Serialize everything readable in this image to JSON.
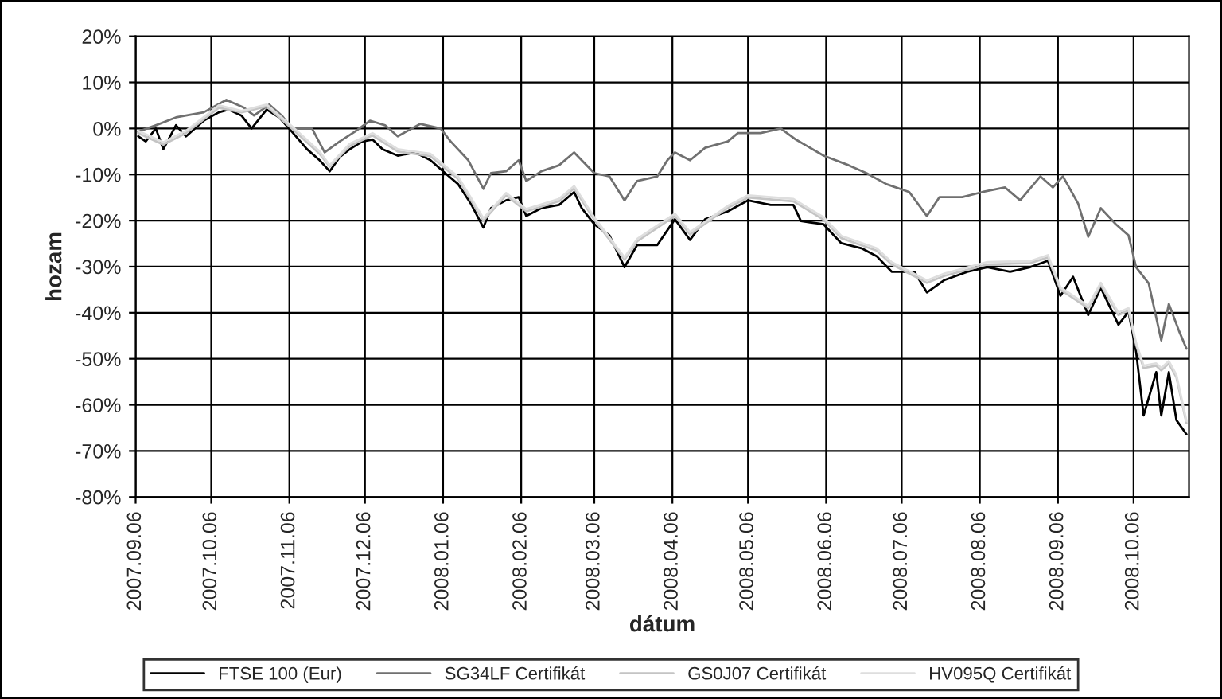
{
  "chart_data": {
    "type": "line",
    "xlabel": "dátum",
    "ylabel": "hozam",
    "xlim": [
      "2007-09-06",
      "2008-10-28"
    ],
    "xticks": [
      {
        "value": "2007-09-06",
        "label": "2007.09.06"
      },
      {
        "value": "2007-10-06",
        "label": "2007.10.06"
      },
      {
        "value": "2007-11-06",
        "label": "2007.11.06"
      },
      {
        "value": "2007-12-06",
        "label": "2007.12.06"
      },
      {
        "value": "2008-01-06",
        "label": "2008.01.06"
      },
      {
        "value": "2008-02-06",
        "label": "2008.02.06"
      },
      {
        "value": "2008-03-06",
        "label": "2008.03.06"
      },
      {
        "value": "2008-04-06",
        "label": "2008.04.06"
      },
      {
        "value": "2008-05-06",
        "label": "2008.05.06"
      },
      {
        "value": "2008-06-06",
        "label": "2008.06.06"
      },
      {
        "value": "2008-07-06",
        "label": "2008.07.06"
      },
      {
        "value": "2008-08-06",
        "label": "2008.08.06"
      },
      {
        "value": "2008-09-06",
        "label": "2008.09.06"
      },
      {
        "value": "2008-10-06",
        "label": "2008.10.06"
      }
    ],
    "ylim": [
      -80,
      20
    ],
    "yticks": [
      {
        "value": -80,
        "label": "-80%"
      },
      {
        "value": -70,
        "label": "-70%"
      },
      {
        "value": -60,
        "label": "-60%"
      },
      {
        "value": -50,
        "label": "-50%"
      },
      {
        "value": -40,
        "label": "-40%"
      },
      {
        "value": -30,
        "label": "-30%"
      },
      {
        "value": -20,
        "label": "-20%"
      },
      {
        "value": -10,
        "label": "-10%"
      },
      {
        "value": 0,
        "label": "0%"
      },
      {
        "value": 10,
        "label": "10%"
      },
      {
        "value": 20,
        "label": "20%"
      }
    ],
    "grid": true,
    "legend": "bottom",
    "marker": "none",
    "line_style": "solid",
    "series": [
      {
        "name": "FTSE 100 (Eur)",
        "color": "#000000",
        "x": [
          "2007-09-07",
          "2007-09-10",
          "2007-09-14",
          "2007-09-17",
          "2007-09-22",
          "2007-09-26",
          "2007-10-03",
          "2007-10-09",
          "2007-10-13",
          "2007-10-18",
          "2007-10-22",
          "2007-10-28",
          "2007-11-02",
          "2007-11-07",
          "2007-11-13",
          "2007-11-18",
          "2007-11-22",
          "2007-11-26",
          "2007-11-30",
          "2007-12-05",
          "2007-12-09",
          "2007-12-13",
          "2007-12-19",
          "2007-12-26",
          "2008-01-01",
          "2008-01-06",
          "2008-01-12",
          "2008-01-17",
          "2008-01-22",
          "2008-01-25",
          "2008-01-31",
          "2008-02-05",
          "2008-02-08",
          "2008-02-14",
          "2008-02-21",
          "2008-02-27",
          "2008-03-01",
          "2008-03-06",
          "2008-03-12",
          "2008-03-18",
          "2008-03-23",
          "2008-03-31",
          "2008-04-07",
          "2008-04-13",
          "2008-04-19",
          "2008-04-28",
          "2008-05-06",
          "2008-05-15",
          "2008-05-24",
          "2008-05-27",
          "2008-06-05",
          "2008-06-12",
          "2008-06-20",
          "2008-06-26",
          "2008-07-02",
          "2008-07-11",
          "2008-07-16",
          "2008-07-23",
          "2008-08-01",
          "2008-08-09",
          "2008-08-18",
          "2008-08-26",
          "2008-09-02",
          "2008-09-07",
          "2008-09-12",
          "2008-09-18",
          "2008-09-23",
          "2008-09-30",
          "2008-10-04",
          "2008-10-07",
          "2008-10-10",
          "2008-10-15",
          "2008-10-17",
          "2008-10-20",
          "2008-10-23",
          "2008-10-27"
        ],
        "values": [
          -1.7,
          -2.8,
          0,
          -4.5,
          0.7,
          -1.7,
          1.7,
          3.5,
          4.1,
          2.8,
          0,
          4.1,
          2.4,
          -0.7,
          -4.5,
          -6.9,
          -9.3,
          -6.2,
          -4.5,
          -2.8,
          -2.4,
          -4.5,
          -5.9,
          -5.2,
          -6.9,
          -9.3,
          -12.1,
          -16.3,
          -21.5,
          -17.3,
          -15.6,
          -14.9,
          -19,
          -17.3,
          -16.6,
          -13.8,
          -17.3,
          -20.8,
          -23.2,
          -30.1,
          -25.3,
          -25.3,
          -19.7,
          -24.2,
          -19.7,
          -18,
          -15.6,
          -16.6,
          -16.6,
          -20.1,
          -20.8,
          -24.9,
          -26,
          -27.7,
          -31.1,
          -31.1,
          -35.6,
          -32.9,
          -31.1,
          -30.1,
          -31.1,
          -30.1,
          -28.7,
          -36.3,
          -32.2,
          -40.5,
          -34.6,
          -42.6,
          -39.8,
          -48.4,
          -62.3,
          -52.9,
          -62.3,
          -52.9,
          -63.3,
          -66.4
        ]
      },
      {
        "name": "SG34LF Certifikát",
        "color": "#707070",
        "x": [
          "2007-09-07",
          "2007-09-14",
          "2007-09-22",
          "2007-10-03",
          "2007-10-12",
          "2007-10-19",
          "2007-10-23",
          "2007-10-29",
          "2007-11-03",
          "2007-11-07",
          "2007-11-15",
          "2007-11-20",
          "2007-11-26",
          "2007-12-02",
          "2007-12-08",
          "2007-12-14",
          "2007-12-19",
          "2007-12-28",
          "2008-01-05",
          "2008-01-09",
          "2008-01-16",
          "2008-01-22",
          "2008-01-25",
          "2008-01-31",
          "2008-02-05",
          "2008-02-08",
          "2008-02-14",
          "2008-02-21",
          "2008-02-27",
          "2008-03-06",
          "2008-03-12",
          "2008-03-18",
          "2008-03-23",
          "2008-03-31",
          "2008-04-04",
          "2008-04-07",
          "2008-04-13",
          "2008-04-19",
          "2008-04-28",
          "2008-05-02",
          "2008-05-11",
          "2008-05-19",
          "2008-05-25",
          "2008-06-05",
          "2008-06-15",
          "2008-06-22",
          "2008-06-30",
          "2008-07-09",
          "2008-07-16",
          "2008-07-21",
          "2008-07-30",
          "2008-08-07",
          "2008-08-16",
          "2008-08-22",
          "2008-08-30",
          "2008-09-04",
          "2008-09-08",
          "2008-09-14",
          "2008-09-18",
          "2008-09-23",
          "2008-09-29",
          "2008-10-04",
          "2008-10-07",
          "2008-10-12",
          "2008-10-17",
          "2008-10-20",
          "2008-10-24",
          "2008-10-27"
        ],
        "values": [
          -0.7,
          0.7,
          2.4,
          3.5,
          6.2,
          4.5,
          2.8,
          5.2,
          2.8,
          0,
          0,
          -5.2,
          -2.8,
          -0.7,
          1.7,
          0.7,
          -1.7,
          1,
          0,
          -2.8,
          -6.9,
          -13.1,
          -9.7,
          -9.3,
          -6.9,
          -11.4,
          -9.3,
          -8,
          -5.2,
          -9.7,
          -10.4,
          -15.6,
          -11.4,
          -10.4,
          -6.9,
          -5.2,
          -6.9,
          -4.2,
          -2.8,
          -1,
          -1,
          0,
          -2.4,
          -5.9,
          -8,
          -9.7,
          -12.1,
          -13.8,
          -19,
          -14.9,
          -14.9,
          -13.8,
          -12.8,
          -15.6,
          -10.4,
          -12.8,
          -10.4,
          -16.3,
          -23.5,
          -17.3,
          -20.8,
          -23.2,
          -30.1,
          -33.6,
          -46,
          -38.1,
          -43.9,
          -47.8
        ]
      },
      {
        "name": "GS0J07 Certifikát",
        "color": "#c4c4c4",
        "x": [
          "2007-09-07",
          "2007-09-17",
          "2007-09-26",
          "2007-10-09",
          "2007-10-18",
          "2007-10-28",
          "2007-11-07",
          "2007-11-18",
          "2007-11-22",
          "2007-11-30",
          "2007-12-09",
          "2007-12-19",
          "2008-01-01",
          "2008-01-12",
          "2008-01-22",
          "2008-01-31",
          "2008-02-08",
          "2008-02-21",
          "2008-02-27",
          "2008-03-06",
          "2008-03-18",
          "2008-03-23",
          "2008-04-07",
          "2008-04-13",
          "2008-04-28",
          "2008-05-06",
          "2008-05-24",
          "2008-06-05",
          "2008-06-12",
          "2008-06-26",
          "2008-07-02",
          "2008-07-16",
          "2008-07-23",
          "2008-08-09",
          "2008-08-26",
          "2008-09-02",
          "2008-09-07",
          "2008-09-18",
          "2008-09-23",
          "2008-09-30",
          "2008-10-04",
          "2008-10-07",
          "2008-10-10",
          "2008-10-15",
          "2008-10-17",
          "2008-10-20",
          "2008-10-23",
          "2008-10-27"
        ],
        "values": [
          -1,
          -3.5,
          -1,
          4.5,
          3.5,
          4.8,
          0,
          -5.5,
          -8.3,
          -3.8,
          -1.5,
          -5,
          -6,
          -11,
          -20,
          -14.5,
          -18,
          -15.8,
          -13,
          -19.8,
          -28.5,
          -24.5,
          -19,
          -23,
          -17.2,
          -15,
          -15.8,
          -19.8,
          -23.8,
          -26.5,
          -29.5,
          -33.5,
          -32,
          -29.5,
          -29.2,
          -28,
          -35,
          -39,
          -34,
          -40.5,
          -39.5,
          -47,
          -52,
          -51.5,
          -52.5,
          -51,
          -54,
          -64
        ]
      },
      {
        "name": "HV095Q Certifikát",
        "color": "#dedede",
        "x": [
          "2007-09-07",
          "2007-09-17",
          "2007-09-26",
          "2007-10-09",
          "2007-10-18",
          "2007-10-28",
          "2007-11-07",
          "2007-11-18",
          "2007-11-22",
          "2007-11-30",
          "2007-12-09",
          "2007-12-19",
          "2008-01-01",
          "2008-01-12",
          "2008-01-22",
          "2008-01-31",
          "2008-02-08",
          "2008-02-21",
          "2008-02-27",
          "2008-03-06",
          "2008-03-18",
          "2008-03-23",
          "2008-04-07",
          "2008-04-13",
          "2008-04-28",
          "2008-05-06",
          "2008-05-24",
          "2008-06-05",
          "2008-06-12",
          "2008-06-26",
          "2008-07-02",
          "2008-07-16",
          "2008-07-23",
          "2008-08-09",
          "2008-08-26",
          "2008-09-02",
          "2008-09-07",
          "2008-09-18",
          "2008-09-23",
          "2008-09-30",
          "2008-10-04",
          "2008-10-07",
          "2008-10-10",
          "2008-10-15",
          "2008-10-17",
          "2008-10-20",
          "2008-10-23",
          "2008-10-27"
        ],
        "values": [
          -0.5,
          -3,
          -0.5,
          5,
          3.8,
          5.2,
          0.5,
          -5,
          -8,
          -3.3,
          -1,
          -4.5,
          -5.5,
          -10.5,
          -19.5,
          -14,
          -17.5,
          -15.3,
          -12.5,
          -19.3,
          -28,
          -24,
          -18.5,
          -22.5,
          -16.8,
          -14.5,
          -15.3,
          -19.3,
          -23.3,
          -26,
          -29,
          -33,
          -31.5,
          -29,
          -28.8,
          -27.5,
          -34.5,
          -38.5,
          -33.5,
          -40,
          -39,
          -46.5,
          -51.5,
          -51,
          -52,
          -50.5,
          -53.5,
          -63.5
        ]
      }
    ]
  }
}
